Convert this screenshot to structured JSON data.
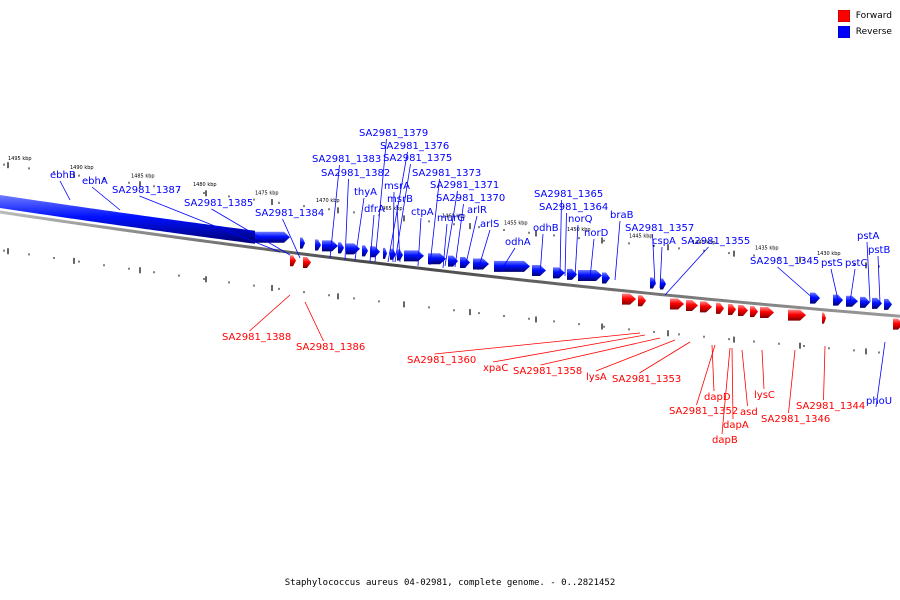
{
  "legend": {
    "forward_label": "Forward",
    "reverse_label": "Reverse",
    "forward_color": "#ff0000",
    "reverse_color": "#0000ff"
  },
  "caption": "Staphylococcus aureus 04-02981, complete genome. - 0..2821452",
  "scale": {
    "unit": "kbp",
    "tick_labels": [
      "1495 kbp",
      "1490 kbp",
      "1485 kbp",
      "1480 kbp",
      "1475 kbp",
      "1470 kbp",
      "1465 kbp",
      "1460 kbp",
      "1455 kbp",
      "1450 kbp",
      "1445 kbp",
      "1440 kbp",
      "1435 kbp",
      "1430 kbp"
    ]
  },
  "reverse_genes": [
    "ebhB",
    "ebhA",
    "SA2981_1387",
    "SA2981_1385",
    "SA2981_1384",
    "SA2981_1383",
    "SA2981_1382",
    "SA2981_1379",
    "SA2981_1376",
    "SA2981_1375",
    "thyA",
    "msrA",
    "dfrA",
    "msrB",
    "SA2981_1373",
    "ctpA",
    "SA2981_1371",
    "murG",
    "SA2981_1370",
    "arlR",
    "arlS",
    "odhA",
    "SA2981_1365",
    "odhB",
    "SA2981_1364",
    "norQ",
    "norD",
    "braB",
    "SA2981_1357",
    "cspA",
    "SA2981_1355",
    "SA2981_1345",
    "pstS",
    "pstC",
    "pstA",
    "pstB",
    "phoU"
  ],
  "forward_genes": [
    "SA2981_1388",
    "SA2981_1386",
    "SA2981_1360",
    "xpaC",
    "SA2981_1358",
    "lysA",
    "SA2981_1353",
    "dapD",
    "SA2981_1352",
    "dapA",
    "dapB",
    "asd",
    "lysC",
    "SA2981_1346",
    "SA2981_1344"
  ]
}
